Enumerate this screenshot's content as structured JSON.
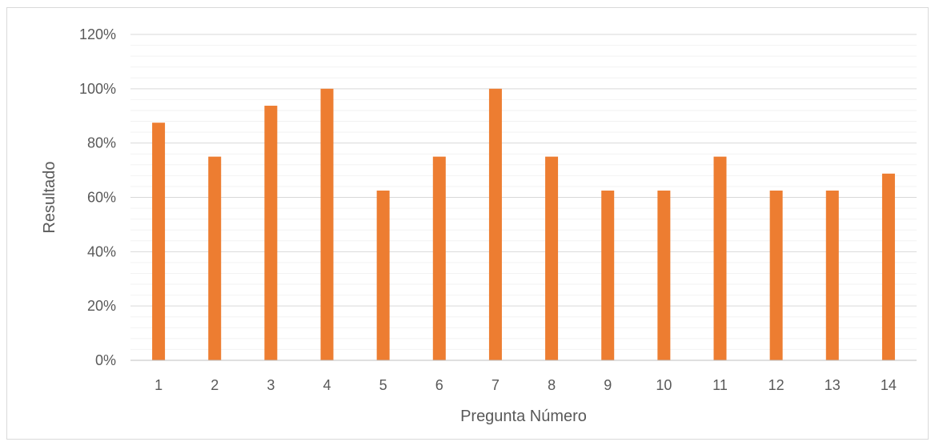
{
  "chart_data": {
    "type": "bar",
    "title": "",
    "xlabel": "Pregunta Número",
    "ylabel": "Resultado",
    "categories": [
      "1",
      "2",
      "3",
      "4",
      "5",
      "6",
      "7",
      "8",
      "9",
      "10",
      "11",
      "12",
      "13",
      "14"
    ],
    "values": [
      87.5,
      75,
      93.75,
      100,
      62.5,
      75,
      100,
      75,
      62.5,
      62.5,
      75,
      62.5,
      62.5,
      68.75
    ],
    "y_ticks": [
      "0%",
      "20%",
      "40%",
      "60%",
      "80%",
      "100%",
      "120%"
    ],
    "ylim": [
      0,
      120
    ],
    "y_major_step": 20,
    "y_minor_step": 4,
    "grid": true,
    "legend": "none",
    "colors": {
      "bar": "#ED7D31",
      "major_grid": "#D9D9D9",
      "minor_grid": "#F2F2F2",
      "axis": "#BFBFBF",
      "text": "#595959"
    }
  }
}
